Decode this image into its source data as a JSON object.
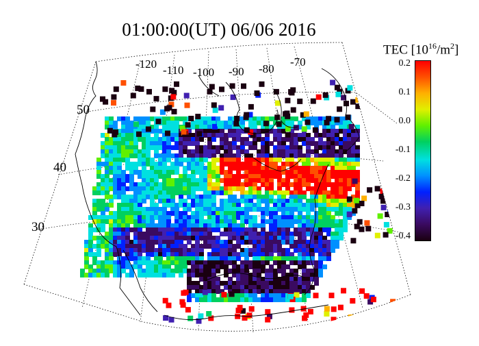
{
  "title": "01:00:00(UT)  06/06 2016",
  "colorbar": {
    "label": "TEC [10",
    "label_sup": "16",
    "label_unit": "/m",
    "label_sup2": "2",
    "label_close": "]",
    "ticks": [
      "0.2",
      "0.1",
      "0.0",
      "-0.1",
      "-0.2",
      "-0.3",
      "-0.4"
    ],
    "range": [
      -0.4,
      0.2
    ],
    "colors": [
      "#1a0010",
      "#3a0a60",
      "#4020b0",
      "#0020ff",
      "#0090ff",
      "#00e0e0",
      "#00d060",
      "#60f000",
      "#e0f000",
      "#ffb000",
      "#ff5000",
      "#ff0000"
    ]
  },
  "longitude_labels": [
    "-120",
    "-110",
    "-100",
    "-90",
    "-80",
    "-70"
  ],
  "latitude_labels": [
    "50",
    "40",
    "30"
  ],
  "grid": "dotted",
  "projection": "conic"
}
